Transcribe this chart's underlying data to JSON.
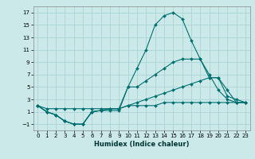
{
  "title": "",
  "xlabel": "Humidex (Indice chaleur)",
  "xlim": [
    -0.5,
    23.5
  ],
  "ylim": [
    -2,
    18
  ],
  "yticks": [
    -1,
    1,
    3,
    5,
    7,
    9,
    11,
    13,
    15,
    17
  ],
  "xticks": [
    0,
    1,
    2,
    3,
    4,
    5,
    6,
    7,
    8,
    9,
    10,
    11,
    12,
    13,
    14,
    15,
    16,
    17,
    18,
    19,
    20,
    21,
    22,
    23
  ],
  "bg_color": "#cce9ea",
  "grid_color": "#aad4d6",
  "line_color": "#007070",
  "lines": [
    {
      "x": [
        0,
        1,
        2,
        3,
        4,
        5,
        6,
        7,
        8,
        9,
        10,
        11,
        12,
        13,
        14,
        15,
        16,
        17,
        18,
        19,
        20,
        21,
        22,
        23
      ],
      "y": [
        2,
        1,
        0.5,
        -0.5,
        -1,
        -1,
        1,
        1.2,
        1.2,
        1.2,
        5,
        8,
        11,
        15,
        16.5,
        17,
        16,
        12.5,
        9.5,
        7,
        4.5,
        3,
        2.5,
        2.5
      ]
    },
    {
      "x": [
        0,
        1,
        2,
        3,
        4,
        5,
        6,
        7,
        8,
        9,
        10,
        11,
        12,
        13,
        14,
        15,
        16,
        17,
        18,
        19,
        20,
        21,
        22,
        23
      ],
      "y": [
        2,
        1,
        0.5,
        -0.5,
        -1,
        -1,
        1,
        1.2,
        1.5,
        1.5,
        5,
        5,
        6,
        7,
        8,
        9,
        9.5,
        9.5,
        9.5,
        6.5,
        6.5,
        4.5,
        2.5,
        2.5
      ]
    },
    {
      "x": [
        0,
        1,
        2,
        3,
        4,
        5,
        6,
        7,
        8,
        9,
        10,
        11,
        12,
        13,
        14,
        15,
        16,
        17,
        18,
        19,
        20,
        21,
        22,
        23
      ],
      "y": [
        2,
        1,
        0.5,
        -0.5,
        -1,
        -1,
        1,
        1.2,
        1.5,
        1.5,
        2,
        2.5,
        3,
        3.5,
        4,
        4.5,
        5,
        5.5,
        6,
        6.5,
        6.5,
        3.5,
        3,
        2.5
      ]
    },
    {
      "x": [
        0,
        1,
        2,
        3,
        4,
        5,
        6,
        7,
        8,
        9,
        10,
        11,
        12,
        13,
        14,
        15,
        16,
        17,
        18,
        19,
        20,
        21,
        22,
        23
      ],
      "y": [
        2,
        1.5,
        1.5,
        1.5,
        1.5,
        1.5,
        1.5,
        1.5,
        1.5,
        1.5,
        2,
        2,
        2,
        2,
        2.5,
        2.5,
        2.5,
        2.5,
        2.5,
        2.5,
        2.5,
        2.5,
        2.5,
        2.5
      ]
    }
  ]
}
